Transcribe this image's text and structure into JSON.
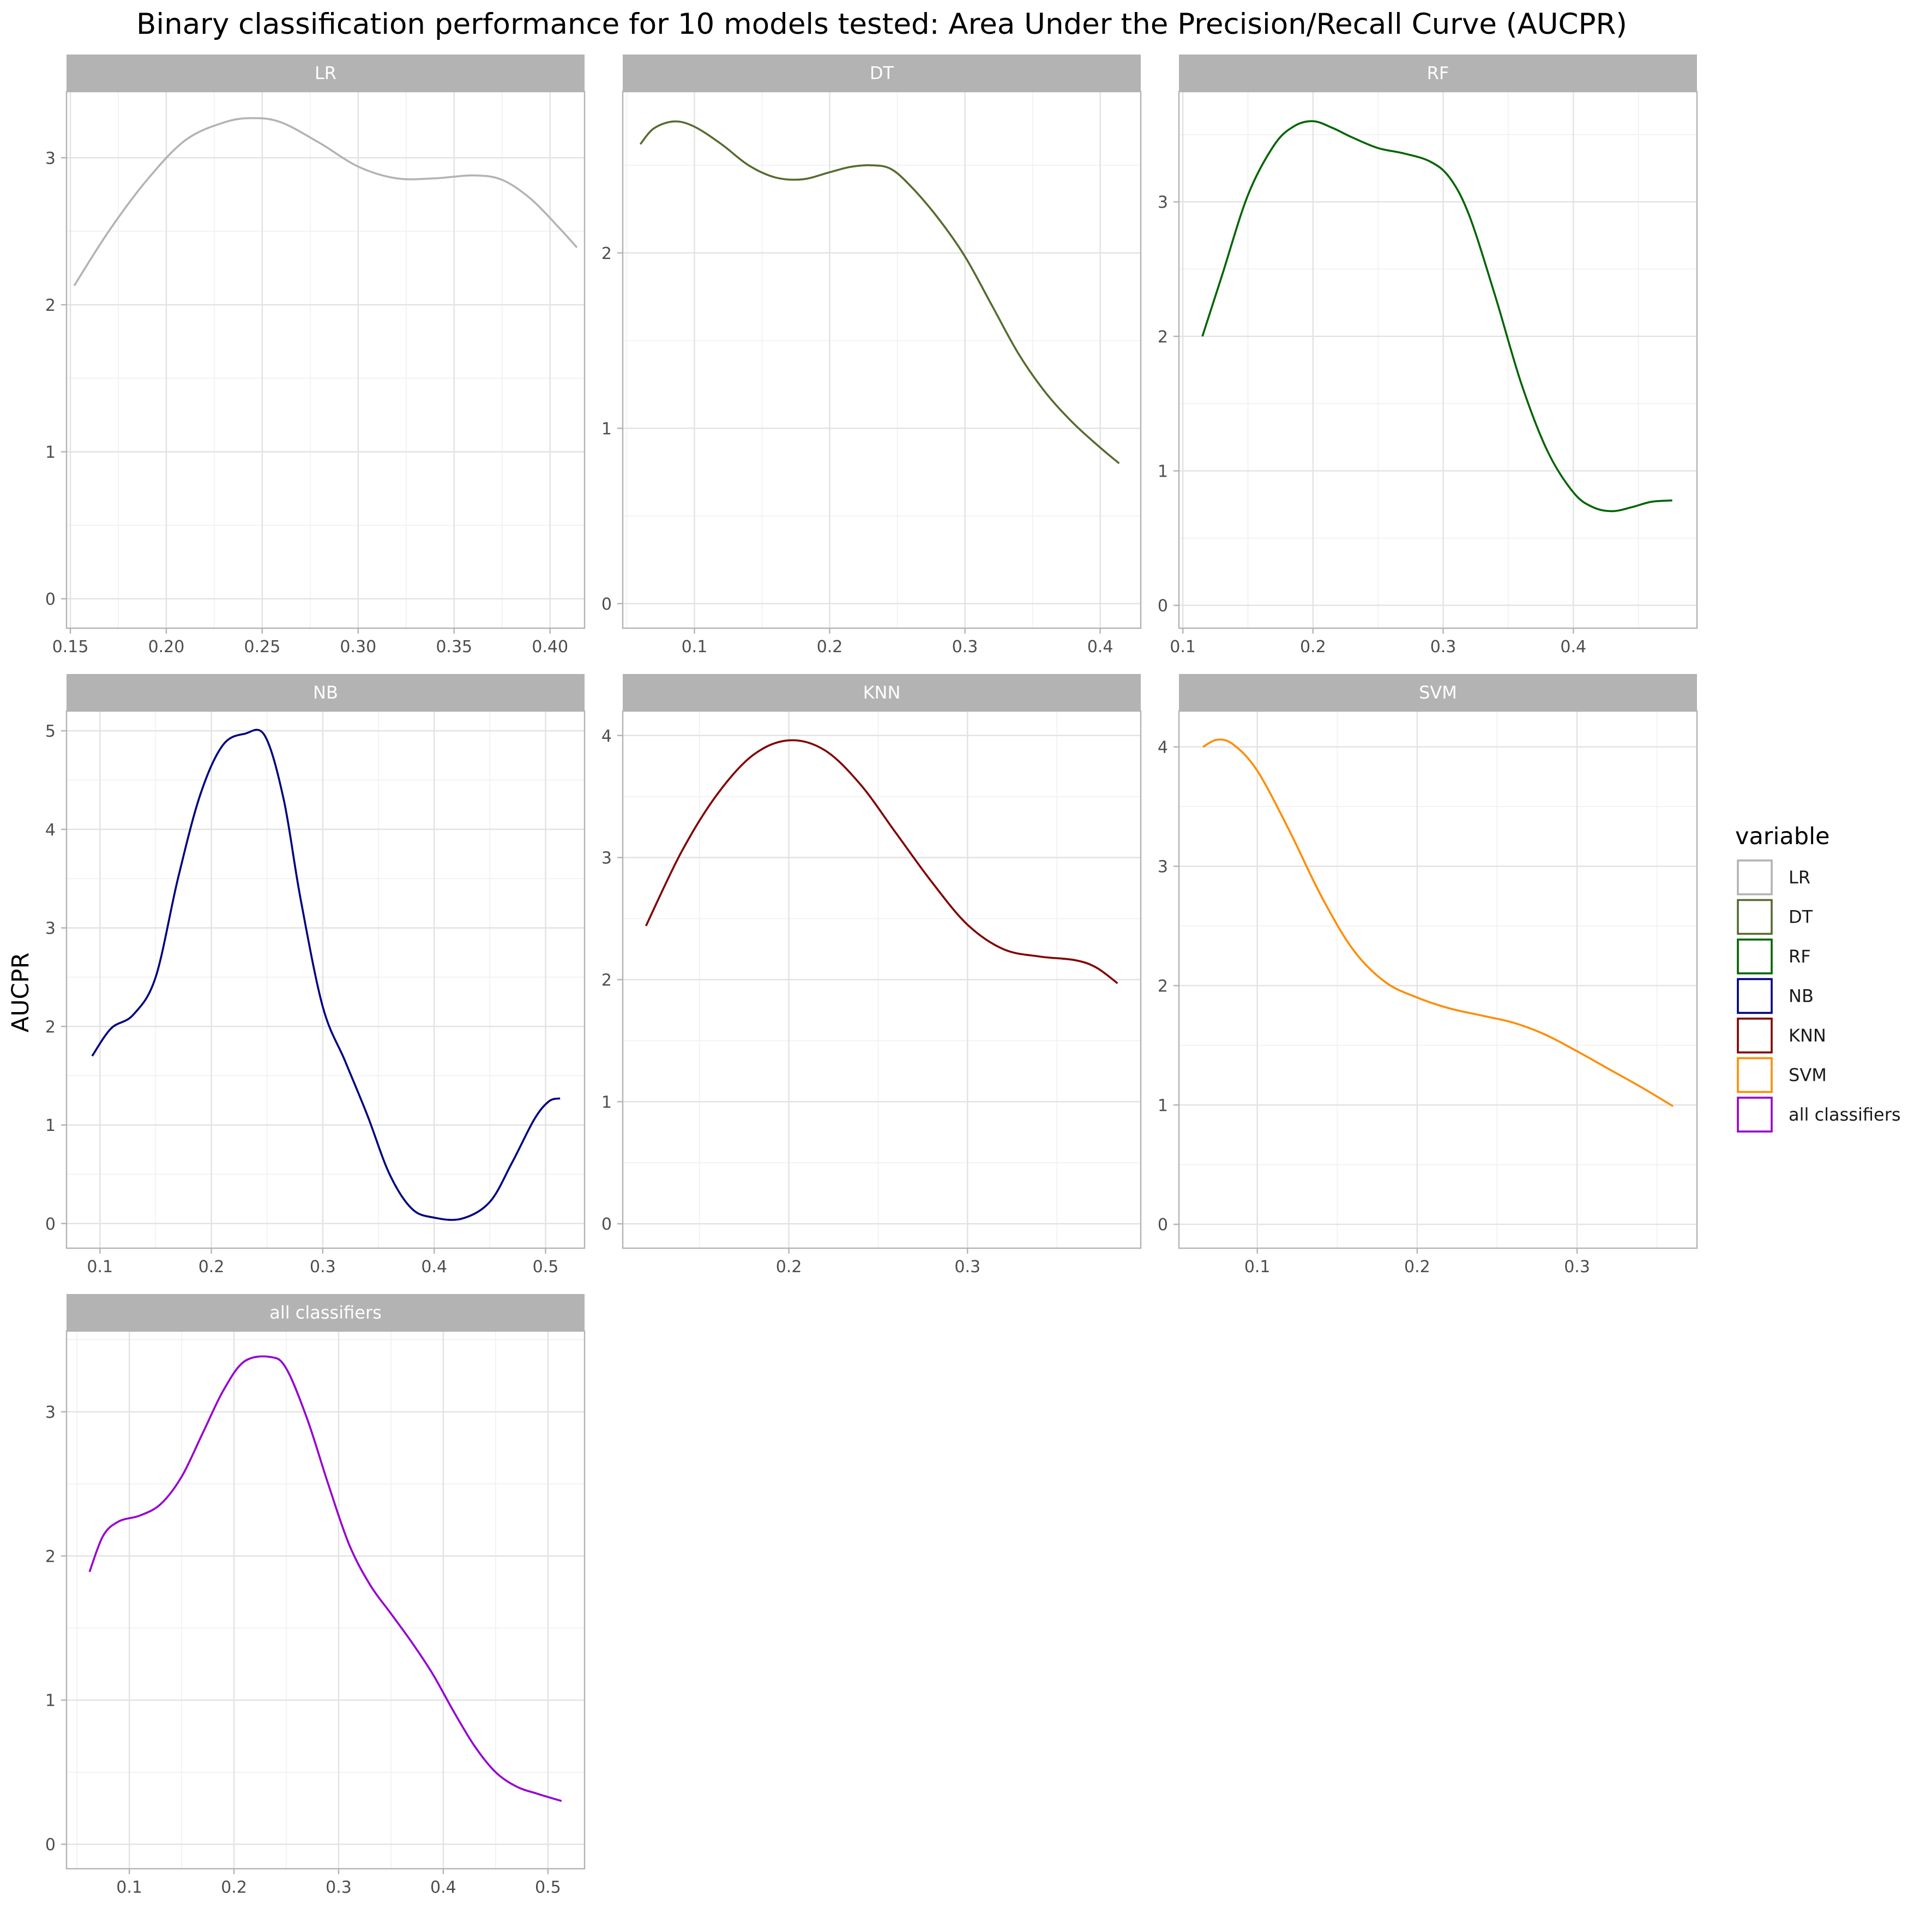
{
  "chart_data": {
    "type": "line",
    "title": "Binary classification performance for 10 models tested: Area Under the Precision/Recall Curve (AUCPR)",
    "xlabel": "",
    "ylabel": "AUCPR",
    "grid": true,
    "legend": {
      "title": "variable",
      "position": "right",
      "entries": [
        "LR",
        "DT",
        "RF",
        "NB",
        "KNN",
        "SVM",
        "all classifiers"
      ]
    },
    "facets": [
      {
        "name": "LR",
        "color": "#b3b3b3",
        "xlim": [
          0.148,
          0.418
        ],
        "ylim": [
          -0.2,
          3.45
        ],
        "xticks": [
          0.15,
          0.2,
          0.25,
          0.3,
          0.35,
          0.4
        ],
        "xtick_labels": [
          "0.15",
          "0.20",
          "0.25",
          "0.30",
          "0.35",
          "0.40"
        ],
        "yticks": [
          0,
          1,
          2,
          3
        ],
        "ytick_labels": [
          "0",
          "1",
          "2",
          "3"
        ],
        "x": [
          0.152,
          0.17,
          0.19,
          0.21,
          0.23,
          0.245,
          0.26,
          0.28,
          0.3,
          0.32,
          0.34,
          0.36,
          0.375,
          0.39,
          0.405,
          0.414
        ],
        "y": [
          2.13,
          2.5,
          2.85,
          3.12,
          3.24,
          3.27,
          3.24,
          3.1,
          2.94,
          2.86,
          2.86,
          2.88,
          2.85,
          2.72,
          2.52,
          2.39
        ]
      },
      {
        "name": "DT",
        "color": "#556b2f",
        "xlim": [
          0.047,
          0.43
        ],
        "ylim": [
          -0.14,
          2.92
        ],
        "xticks": [
          0.1,
          0.2,
          0.3,
          0.4
        ],
        "xtick_labels": [
          "0.1",
          "0.2",
          "0.3",
          "0.4"
        ],
        "yticks": [
          0,
          1,
          2
        ],
        "ytick_labels": [
          "0",
          "1",
          "2"
        ],
        "x": [
          0.06,
          0.07,
          0.085,
          0.1,
          0.12,
          0.14,
          0.16,
          0.18,
          0.2,
          0.215,
          0.23,
          0.245,
          0.26,
          0.28,
          0.3,
          0.32,
          0.34,
          0.36,
          0.38,
          0.4,
          0.414
        ],
        "y": [
          2.62,
          2.71,
          2.75,
          2.72,
          2.62,
          2.5,
          2.43,
          2.42,
          2.46,
          2.49,
          2.5,
          2.48,
          2.38,
          2.2,
          1.98,
          1.7,
          1.42,
          1.2,
          1.03,
          0.89,
          0.8
        ]
      },
      {
        "name": "RF",
        "color": "#006400",
        "xlim": [
          0.097,
          0.495
        ],
        "ylim": [
          -0.17,
          3.82
        ],
        "xticks": [
          0.1,
          0.2,
          0.3,
          0.4
        ],
        "xtick_labels": [
          "0.1",
          "0.2",
          "0.3",
          "0.4"
        ],
        "yticks": [
          0,
          1,
          2,
          3
        ],
        "ytick_labels": [
          "0",
          "1",
          "2",
          "3"
        ],
        "x": [
          0.115,
          0.13,
          0.15,
          0.17,
          0.185,
          0.2,
          0.215,
          0.23,
          0.25,
          0.27,
          0.29,
          0.305,
          0.32,
          0.34,
          0.36,
          0.38,
          0.4,
          0.415,
          0.43,
          0.445,
          0.46,
          0.476
        ],
        "y": [
          2.0,
          2.45,
          3.05,
          3.42,
          3.56,
          3.6,
          3.55,
          3.48,
          3.4,
          3.36,
          3.3,
          3.18,
          2.9,
          2.3,
          1.65,
          1.15,
          0.84,
          0.73,
          0.7,
          0.73,
          0.77,
          0.78
        ]
      },
      {
        "name": "NB",
        "color": "#000080",
        "xlim": [
          0.07,
          0.535
        ],
        "ylim": [
          -0.25,
          5.2
        ],
        "xticks": [
          0.1,
          0.2,
          0.3,
          0.4,
          0.5
        ],
        "xtick_labels": [
          "0.1",
          "0.2",
          "0.3",
          "0.4",
          "0.5"
        ],
        "yticks": [
          0,
          1,
          2,
          3,
          4,
          5
        ],
        "ytick_labels": [
          "0",
          "1",
          "2",
          "3",
          "4",
          "5"
        ],
        "x": [
          0.093,
          0.11,
          0.13,
          0.15,
          0.17,
          0.19,
          0.21,
          0.23,
          0.248,
          0.265,
          0.28,
          0.3,
          0.32,
          0.34,
          0.36,
          0.38,
          0.4,
          0.425,
          0.45,
          0.47,
          0.49,
          0.503,
          0.513
        ],
        "y": [
          1.7,
          1.98,
          2.12,
          2.5,
          3.5,
          4.35,
          4.85,
          4.97,
          4.95,
          4.3,
          3.3,
          2.2,
          1.65,
          1.1,
          0.5,
          0.15,
          0.06,
          0.05,
          0.22,
          0.62,
          1.06,
          1.24,
          1.27
        ]
      },
      {
        "name": "KNN",
        "color": "#800000",
        "xlim": [
          0.107,
          0.397
        ],
        "ylim": [
          -0.2,
          4.2
        ],
        "xticks": [
          0.2,
          0.3
        ],
        "xtick_labels": [
          "0.2",
          "0.3"
        ],
        "yticks": [
          0,
          1,
          2,
          3,
          4
        ],
        "ytick_labels": [
          "0",
          "1",
          "2",
          "3",
          "4"
        ],
        "x": [
          0.12,
          0.14,
          0.16,
          0.18,
          0.2,
          0.22,
          0.24,
          0.26,
          0.28,
          0.3,
          0.32,
          0.34,
          0.36,
          0.372,
          0.384
        ],
        "y": [
          2.44,
          3.05,
          3.52,
          3.84,
          3.96,
          3.88,
          3.6,
          3.2,
          2.8,
          2.45,
          2.25,
          2.19,
          2.16,
          2.1,
          1.97
        ]
      },
      {
        "name": "SVM",
        "color": "#ff8c00",
        "xlim": [
          0.051,
          0.375
        ],
        "ylim": [
          -0.2,
          4.3
        ],
        "xticks": [
          0.1,
          0.2,
          0.3
        ],
        "xtick_labels": [
          "0.1",
          "0.2",
          "0.3"
        ],
        "yticks": [
          0,
          1,
          2,
          3,
          4
        ],
        "ytick_labels": [
          "0",
          "1",
          "2",
          "3",
          "4"
        ],
        "x": [
          0.066,
          0.075,
          0.085,
          0.1,
          0.12,
          0.14,
          0.16,
          0.18,
          0.2,
          0.22,
          0.24,
          0.26,
          0.28,
          0.3,
          0.32,
          0.34,
          0.36
        ],
        "y": [
          4.0,
          4.06,
          4.02,
          3.8,
          3.3,
          2.75,
          2.3,
          2.03,
          1.9,
          1.81,
          1.75,
          1.69,
          1.59,
          1.45,
          1.3,
          1.15,
          0.99
        ]
      },
      {
        "name": "all classifiers",
        "color": "#9400d3",
        "xlim": [
          0.04,
          0.535
        ],
        "ylim": [
          -0.17,
          3.56
        ],
        "xticks": [
          0.1,
          0.2,
          0.3,
          0.4,
          0.5
        ],
        "xtick_labels": [
          "0.1",
          "0.2",
          "0.3",
          "0.4",
          "0.5"
        ],
        "yticks": [
          0,
          1,
          2,
          3
        ],
        "ytick_labels": [
          "0",
          "1",
          "2",
          "3"
        ],
        "x": [
          0.062,
          0.075,
          0.09,
          0.11,
          0.13,
          0.15,
          0.17,
          0.19,
          0.21,
          0.235,
          0.25,
          0.27,
          0.29,
          0.31,
          0.33,
          0.35,
          0.37,
          0.39,
          0.41,
          0.43,
          0.45,
          0.47,
          0.49,
          0.513
        ],
        "y": [
          1.89,
          2.14,
          2.24,
          2.28,
          2.36,
          2.55,
          2.85,
          3.15,
          3.35,
          3.38,
          3.3,
          2.95,
          2.5,
          2.08,
          1.8,
          1.6,
          1.4,
          1.18,
          0.92,
          0.68,
          0.5,
          0.4,
          0.35,
          0.3
        ]
      }
    ]
  }
}
